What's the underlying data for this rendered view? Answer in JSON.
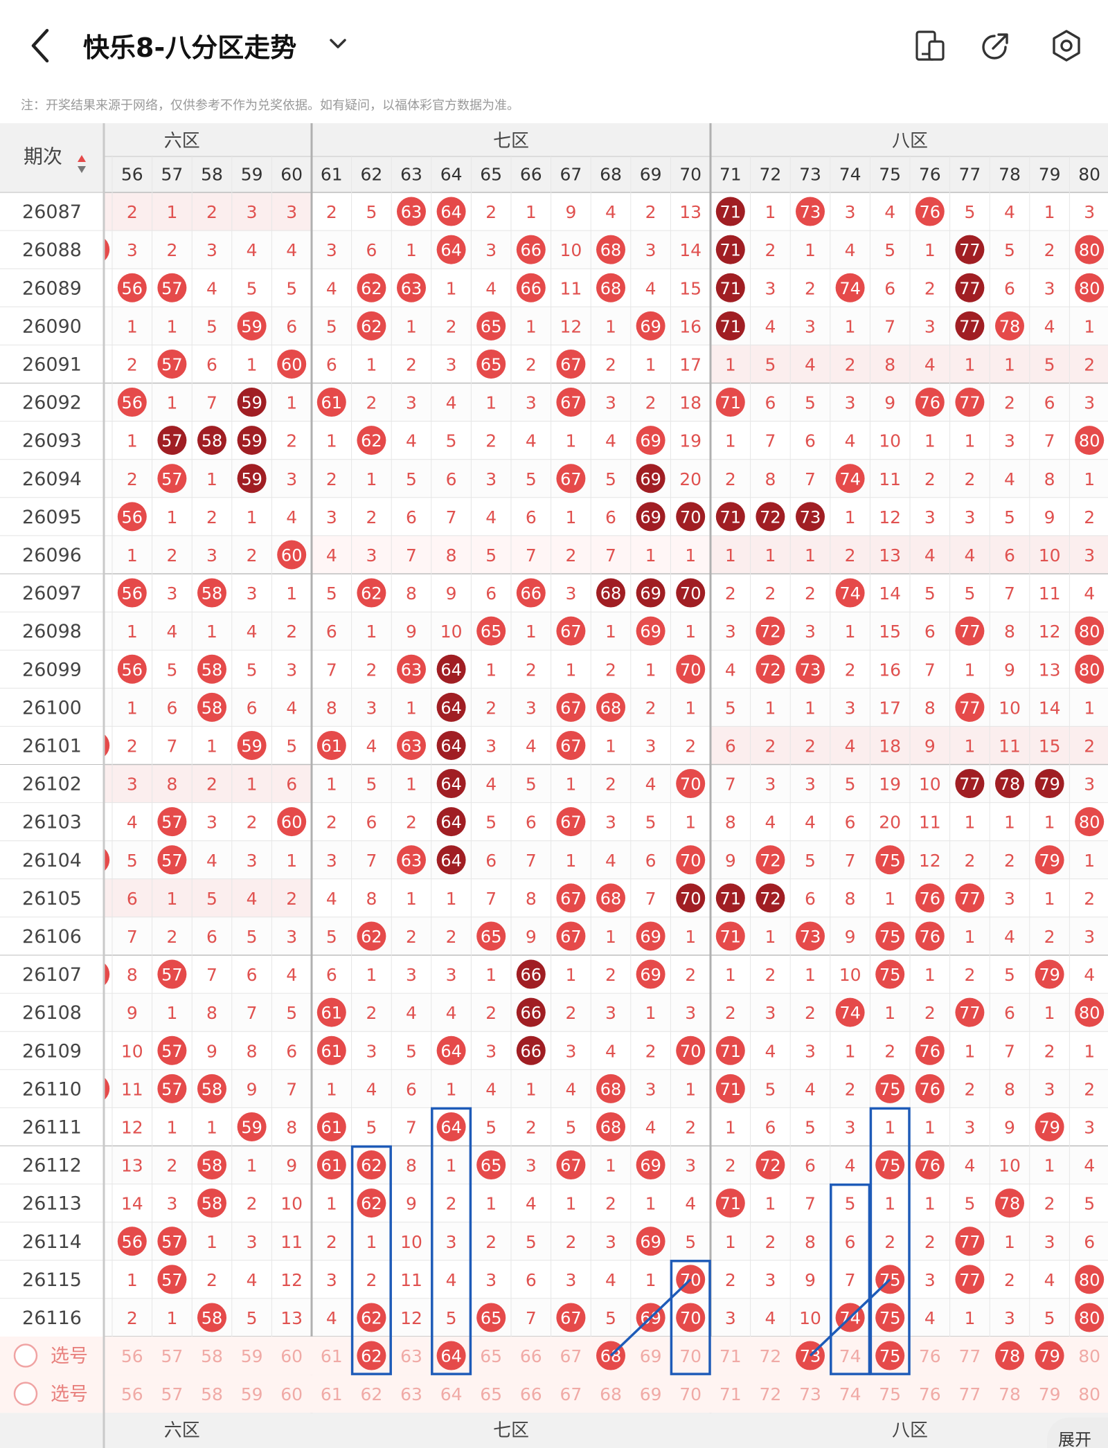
{
  "app": {
    "title": "快乐8-八分区走势",
    "notice": "注：开奖结果来源于网络，仅供参考不作为兑奖依据。如有疑问，以福体彩官方数据为准。"
  },
  "icons": {
    "back": "chevron-left-icon",
    "title_menu": "chevron-down-icon",
    "mobile": "mobile-device-icon",
    "share": "share-arrow-icon",
    "settings": "hexagon-gear-icon"
  },
  "colors": {
    "ball_red": "#e54a4a",
    "ball_dark": "#a01e23",
    "text_red": "#e0514f",
    "band": "#fbeeee",
    "band_light": "#fff6f6",
    "header_bg": "#f1f1f1",
    "highlight": "#1e5bb8"
  },
  "table": {
    "period_header": "期次",
    "zones_top": [
      "六区",
      "七区",
      "八区"
    ],
    "zones_bottom": [
      "六区",
      "七区",
      "八区"
    ],
    "columns": [
      "56",
      "57",
      "58",
      "59",
      "60",
      "61",
      "62",
      "63",
      "64",
      "65",
      "66",
      "67",
      "68",
      "69",
      "70",
      "71",
      "72",
      "73",
      "74",
      "75",
      "76",
      "77",
      "78",
      "79",
      "80"
    ],
    "rows": [
      {
        "p": "26087",
        "v": [
          "2",
          "1",
          "2",
          "3",
          "3",
          "2",
          "5",
          "63",
          "64",
          "2",
          "1",
          "9",
          "4",
          "2",
          "13",
          "71",
          "1",
          "73",
          "3",
          "4",
          "76",
          "5",
          "4",
          "1",
          "3"
        ]
      },
      {
        "p": "26088",
        "v": [
          "3",
          "2",
          "3",
          "4",
          "4",
          "3",
          "6",
          "1",
          "64",
          "3",
          "66",
          "10",
          "68",
          "3",
          "14",
          "71",
          "2",
          "1",
          "4",
          "5",
          "1",
          "77",
          "5",
          "2",
          "80"
        ]
      },
      {
        "p": "26089",
        "v": [
          "56",
          "57",
          "4",
          "5",
          "5",
          "4",
          "62",
          "63",
          "1",
          "4",
          "66",
          "11",
          "68",
          "4",
          "15",
          "71",
          "3",
          "2",
          "74",
          "6",
          "2",
          "77",
          "6",
          "3",
          "80"
        ]
      },
      {
        "p": "26090",
        "v": [
          "1",
          "1",
          "5",
          "59",
          "6",
          "5",
          "62",
          "1",
          "2",
          "65",
          "1",
          "12",
          "1",
          "69",
          "16",
          "71",
          "4",
          "3",
          "1",
          "7",
          "3",
          "77",
          "78",
          "4",
          "1"
        ]
      },
      {
        "p": "26091",
        "v": [
          "2",
          "57",
          "6",
          "1",
          "60",
          "6",
          "1",
          "2",
          "3",
          "65",
          "2",
          "67",
          "2",
          "1",
          "17",
          "1",
          "5",
          "4",
          "2",
          "8",
          "4",
          "1",
          "1",
          "5",
          "2"
        ]
      },
      {
        "p": "26092",
        "v": [
          "56",
          "1",
          "7",
          "59",
          "1",
          "61",
          "2",
          "3",
          "4",
          "1",
          "3",
          "67",
          "3",
          "2",
          "18",
          "71",
          "6",
          "5",
          "3",
          "9",
          "76",
          "77",
          "2",
          "6",
          "3"
        ]
      },
      {
        "p": "26093",
        "v": [
          "1",
          "57",
          "58",
          "59",
          "2",
          "1",
          "62",
          "4",
          "5",
          "2",
          "4",
          "1",
          "4",
          "69",
          "19",
          "1",
          "7",
          "6",
          "4",
          "10",
          "1",
          "1",
          "3",
          "7",
          "80"
        ]
      },
      {
        "p": "26094",
        "v": [
          "2",
          "57",
          "1",
          "59",
          "3",
          "2",
          "1",
          "5",
          "6",
          "3",
          "5",
          "67",
          "5",
          "69",
          "20",
          "2",
          "8",
          "7",
          "74",
          "11",
          "2",
          "2",
          "4",
          "8",
          "1"
        ]
      },
      {
        "p": "26095",
        "v": [
          "56",
          "1",
          "2",
          "1",
          "4",
          "3",
          "2",
          "6",
          "7",
          "4",
          "6",
          "1",
          "6",
          "69",
          "70",
          "71",
          "72",
          "73",
          "1",
          "12",
          "3",
          "3",
          "5",
          "9",
          "2"
        ]
      },
      {
        "p": "26096",
        "v": [
          "1",
          "2",
          "3",
          "2",
          "60",
          "4",
          "3",
          "7",
          "8",
          "5",
          "7",
          "2",
          "7",
          "1",
          "1",
          "1",
          "1",
          "1",
          "2",
          "13",
          "4",
          "4",
          "6",
          "10",
          "3"
        ]
      },
      {
        "p": "26097",
        "v": [
          "56",
          "3",
          "58",
          "3",
          "1",
          "5",
          "62",
          "8",
          "9",
          "6",
          "66",
          "3",
          "68",
          "69",
          "70",
          "2",
          "2",
          "2",
          "74",
          "14",
          "5",
          "5",
          "7",
          "11",
          "4"
        ]
      },
      {
        "p": "26098",
        "v": [
          "1",
          "4",
          "1",
          "4",
          "2",
          "6",
          "1",
          "9",
          "10",
          "65",
          "1",
          "67",
          "1",
          "69",
          "1",
          "3",
          "72",
          "3",
          "1",
          "15",
          "6",
          "77",
          "8",
          "12",
          "80"
        ]
      },
      {
        "p": "26099",
        "v": [
          "56",
          "5",
          "58",
          "5",
          "3",
          "7",
          "2",
          "63",
          "64",
          "1",
          "2",
          "1",
          "2",
          "1",
          "70",
          "4",
          "72",
          "73",
          "2",
          "16",
          "7",
          "1",
          "9",
          "13",
          "80"
        ]
      },
      {
        "p": "26100",
        "v": [
          "1",
          "6",
          "58",
          "6",
          "4",
          "8",
          "3",
          "1",
          "64",
          "2",
          "3",
          "67",
          "68",
          "2",
          "1",
          "5",
          "1",
          "1",
          "3",
          "17",
          "8",
          "77",
          "10",
          "14",
          "1"
        ]
      },
      {
        "p": "26101",
        "v": [
          "2",
          "7",
          "1",
          "59",
          "5",
          "61",
          "4",
          "63",
          "64",
          "3",
          "4",
          "67",
          "1",
          "3",
          "2",
          "6",
          "2",
          "2",
          "4",
          "18",
          "9",
          "1",
          "11",
          "15",
          "2"
        ]
      },
      {
        "p": "26102",
        "v": [
          "3",
          "8",
          "2",
          "1",
          "6",
          "1",
          "5",
          "1",
          "64",
          "4",
          "5",
          "1",
          "2",
          "4",
          "70",
          "7",
          "3",
          "3",
          "5",
          "19",
          "10",
          "77",
          "78",
          "79",
          "3"
        ]
      },
      {
        "p": "26103",
        "v": [
          "4",
          "57",
          "3",
          "2",
          "60",
          "2",
          "6",
          "2",
          "64",
          "5",
          "6",
          "67",
          "3",
          "5",
          "1",
          "8",
          "4",
          "4",
          "6",
          "20",
          "11",
          "1",
          "1",
          "1",
          "80"
        ]
      },
      {
        "p": "26104",
        "v": [
          "5",
          "57",
          "4",
          "3",
          "1",
          "3",
          "7",
          "63",
          "64",
          "6",
          "7",
          "1",
          "4",
          "6",
          "70",
          "9",
          "72",
          "5",
          "7",
          "75",
          "12",
          "2",
          "2",
          "79",
          "1"
        ]
      },
      {
        "p": "26105",
        "v": [
          "6",
          "1",
          "5",
          "4",
          "2",
          "4",
          "8",
          "1",
          "1",
          "7",
          "8",
          "67",
          "68",
          "7",
          "70",
          "71",
          "72",
          "6",
          "8",
          "1",
          "76",
          "77",
          "3",
          "1",
          "2"
        ]
      },
      {
        "p": "26106",
        "v": [
          "7",
          "2",
          "6",
          "5",
          "3",
          "5",
          "62",
          "2",
          "2",
          "65",
          "9",
          "67",
          "1",
          "69",
          "1",
          "71",
          "1",
          "73",
          "9",
          "75",
          "76",
          "1",
          "4",
          "2",
          "3"
        ]
      },
      {
        "p": "26107",
        "v": [
          "8",
          "57",
          "7",
          "6",
          "4",
          "6",
          "1",
          "3",
          "3",
          "1",
          "66",
          "1",
          "2",
          "69",
          "2",
          "1",
          "2",
          "1",
          "10",
          "75",
          "1",
          "2",
          "5",
          "79",
          "4"
        ]
      },
      {
        "p": "26108",
        "v": [
          "9",
          "1",
          "8",
          "7",
          "5",
          "61",
          "2",
          "4",
          "4",
          "2",
          "66",
          "2",
          "3",
          "1",
          "3",
          "2",
          "3",
          "2",
          "74",
          "1",
          "2",
          "77",
          "6",
          "1",
          "80"
        ]
      },
      {
        "p": "26109",
        "v": [
          "10",
          "57",
          "9",
          "8",
          "6",
          "61",
          "3",
          "5",
          "64",
          "3",
          "66",
          "3",
          "4",
          "2",
          "70",
          "71",
          "4",
          "3",
          "1",
          "2",
          "76",
          "1",
          "7",
          "2",
          "1"
        ]
      },
      {
        "p": "26110",
        "v": [
          "11",
          "57",
          "58",
          "9",
          "7",
          "1",
          "4",
          "6",
          "1",
          "4",
          "1",
          "4",
          "68",
          "3",
          "1",
          "71",
          "5",
          "4",
          "2",
          "75",
          "76",
          "2",
          "8",
          "3",
          "2"
        ]
      },
      {
        "p": "26111",
        "v": [
          "12",
          "1",
          "1",
          "59",
          "8",
          "61",
          "5",
          "7",
          "64",
          "5",
          "2",
          "5",
          "68",
          "4",
          "2",
          "1",
          "6",
          "5",
          "3",
          "1",
          "1",
          "3",
          "9",
          "79",
          "3"
        ]
      },
      {
        "p": "26112",
        "v": [
          "13",
          "2",
          "58",
          "1",
          "9",
          "61",
          "62",
          "8",
          "1",
          "65",
          "3",
          "67",
          "1",
          "69",
          "3",
          "2",
          "72",
          "6",
          "4",
          "75",
          "76",
          "4",
          "10",
          "1",
          "4"
        ]
      },
      {
        "p": "26113",
        "v": [
          "14",
          "3",
          "58",
          "2",
          "10",
          "1",
          "62",
          "9",
          "2",
          "1",
          "4",
          "1",
          "2",
          "1",
          "4",
          "71",
          "1",
          "7",
          "5",
          "1",
          "1",
          "5",
          "78",
          "2",
          "5"
        ]
      },
      {
        "p": "26114",
        "v": [
          "56",
          "57",
          "1",
          "3",
          "11",
          "2",
          "1",
          "10",
          "3",
          "2",
          "5",
          "2",
          "3",
          "69",
          "5",
          "1",
          "2",
          "8",
          "6",
          "2",
          "2",
          "77",
          "1",
          "3",
          "6"
        ]
      },
      {
        "p": "26115",
        "v": [
          "1",
          "57",
          "2",
          "4",
          "12",
          "3",
          "2",
          "11",
          "4",
          "3",
          "6",
          "3",
          "4",
          "1",
          "70",
          "2",
          "3",
          "9",
          "7",
          "75",
          "3",
          "77",
          "2",
          "4",
          "80"
        ]
      },
      {
        "p": "26116",
        "v": [
          "2",
          "1",
          "58",
          "5",
          "13",
          "4",
          "62",
          "12",
          "5",
          "65",
          "7",
          "67",
          "5",
          "69",
          "70",
          "3",
          "4",
          "10",
          "74",
          "75",
          "4",
          "1",
          "3",
          "5",
          "80"
        ]
      }
    ],
    "dark_balls": [
      [
        0,
        "71"
      ],
      [
        1,
        "71"
      ],
      [
        1,
        "77"
      ],
      [
        2,
        "71"
      ],
      [
        2,
        "77"
      ],
      [
        3,
        "71"
      ],
      [
        3,
        "77"
      ],
      [
        5,
        "59"
      ],
      [
        6,
        "57"
      ],
      [
        6,
        "58"
      ],
      [
        6,
        "59"
      ],
      [
        7,
        "59"
      ],
      [
        7,
        "69"
      ],
      [
        8,
        "69"
      ],
      [
        8,
        "70"
      ],
      [
        8,
        "71"
      ],
      [
        8,
        "72"
      ],
      [
        8,
        "73"
      ],
      [
        10,
        "68"
      ],
      [
        10,
        "69"
      ],
      [
        10,
        "70"
      ],
      [
        12,
        "64"
      ],
      [
        13,
        "64"
      ],
      [
        14,
        "64"
      ],
      [
        15,
        "64"
      ],
      [
        15,
        "77"
      ],
      [
        15,
        "78"
      ],
      [
        15,
        "79"
      ],
      [
        16,
        "64"
      ],
      [
        17,
        "64"
      ],
      [
        18,
        "70"
      ],
      [
        18,
        "71"
      ],
      [
        18,
        "72"
      ],
      [
        20,
        "66"
      ],
      [
        21,
        "66"
      ],
      [
        22,
        "66"
      ]
    ],
    "selection_rows": [
      {
        "label": "选号",
        "selected": [
          "62",
          "64",
          "68",
          "73",
          "75",
          "78",
          "79"
        ]
      },
      {
        "label": "选号",
        "selected": []
      }
    ]
  },
  "expand_button": {
    "label": "展开"
  }
}
